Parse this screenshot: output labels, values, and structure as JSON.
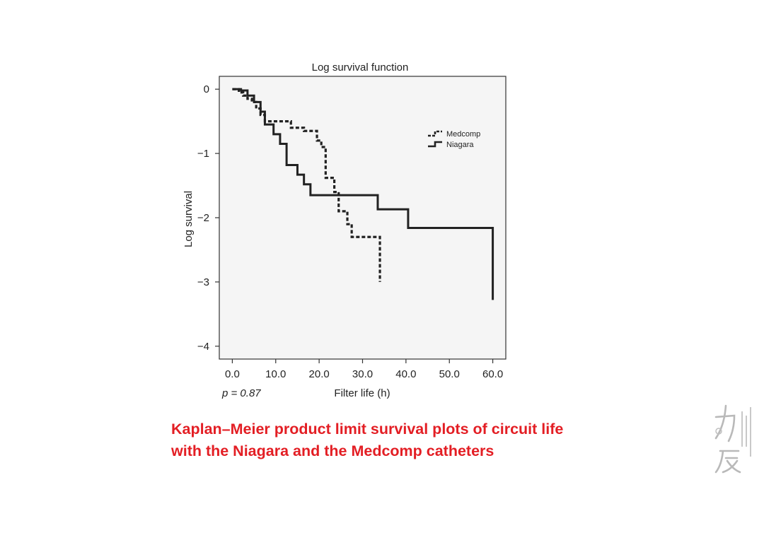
{
  "chart_data": {
    "type": "line",
    "style": "step",
    "title": "Log survival function",
    "xlabel": "Filter life (h)",
    "ylabel": "Log survival",
    "xlim": [
      -3,
      63
    ],
    "ylim": [
      -4.2,
      0.2
    ],
    "xticks": [
      0,
      10,
      20,
      30,
      40,
      50,
      60
    ],
    "xtick_labels": [
      "0.0",
      "10.0",
      "20.0",
      "30.0",
      "40.0",
      "50.0",
      "60.0"
    ],
    "yticks": [
      0,
      -1,
      -2,
      -3,
      -4
    ],
    "ytick_labels": [
      "0",
      "−1",
      "−2",
      "−3",
      "−4"
    ],
    "legend_position": "top-right",
    "annotation": "p = 0.87",
    "series": [
      {
        "name": "Medcomp",
        "line_style": "dashed",
        "color": "#222222",
        "x": [
          0,
          1.5,
          2.5,
          3.5,
          4.5,
          5.5,
          6.5,
          7.5,
          9.5,
          13.5,
          16.5,
          19.5,
          20.5,
          21.5,
          23.5,
          24.5,
          26.5,
          27.5,
          34,
          34
        ],
        "y": [
          0,
          -0.05,
          -0.1,
          -0.15,
          -0.2,
          -0.3,
          -0.4,
          -0.5,
          -0.5,
          -0.6,
          -0.65,
          -0.8,
          -0.9,
          -1.38,
          -1.6,
          -1.9,
          -2.1,
          -2.3,
          -2.3,
          -3.0
        ]
      },
      {
        "name": "Niagara",
        "line_style": "solid",
        "color": "#222222",
        "x": [
          0,
          2,
          3.5,
          5,
          6.5,
          7.5,
          9.5,
          11,
          12.5,
          15,
          16.5,
          18,
          30.5,
          33.5,
          40.5,
          60,
          60
        ],
        "y": [
          0,
          -0.02,
          -0.1,
          -0.2,
          -0.35,
          -0.55,
          -0.7,
          -0.85,
          -1.18,
          -1.33,
          -1.48,
          -1.65,
          -1.65,
          -1.87,
          -2.16,
          -2.16,
          -3.28
        ]
      }
    ]
  },
  "caption": {
    "line1": "Kaplan–Meier product limit survival plots of circuit life",
    "line2": "with the Niagara and the Medcomp catheters"
  },
  "colors": {
    "caption": "#e31e24",
    "plot_background": "#f5f5f5",
    "series_line": "#222222"
  }
}
